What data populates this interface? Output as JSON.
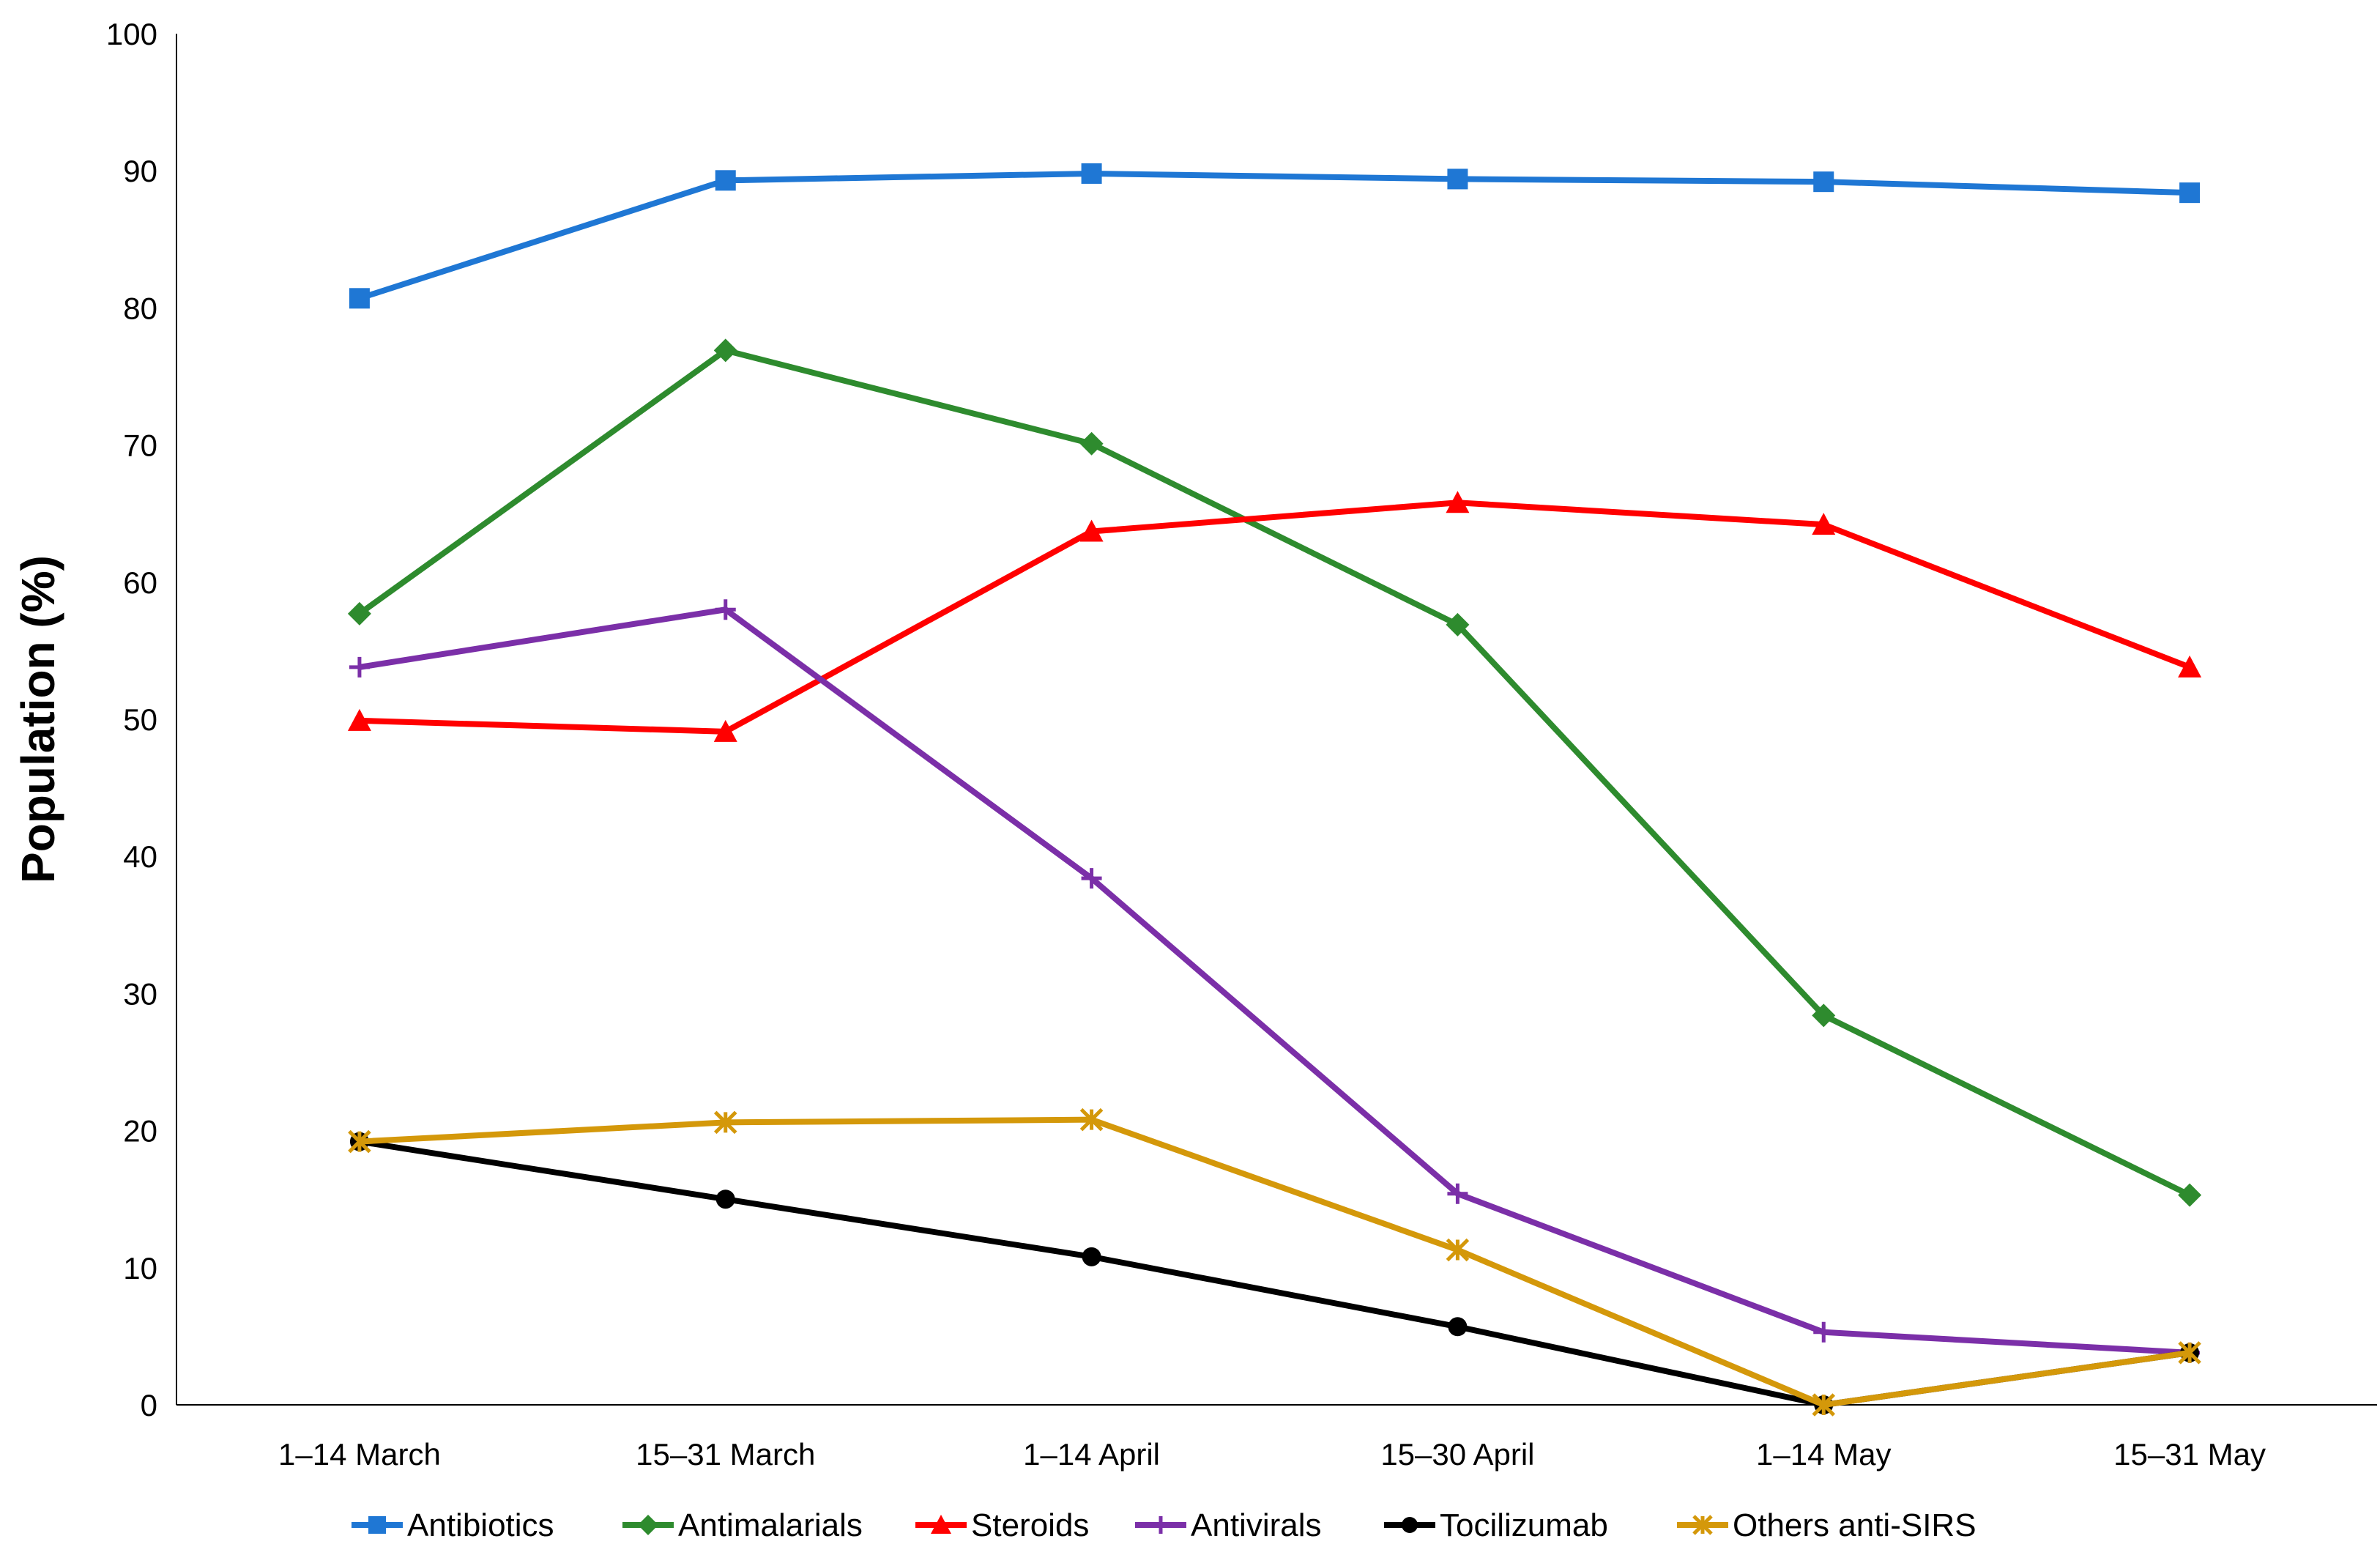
{
  "chart_data": {
    "type": "line",
    "title": "",
    "xlabel": "",
    "ylabel": "Population (%)",
    "ylim": [
      0,
      100
    ],
    "yticks": [
      0,
      10,
      20,
      30,
      40,
      50,
      60,
      70,
      80,
      90,
      100
    ],
    "grid": false,
    "legend_position": "bottom",
    "categories": [
      "1–14 March",
      "15–31 March",
      "1–14 April",
      "15–30 April",
      "1–14 May",
      "15–31 May"
    ],
    "series": [
      {
        "name": "Antibiotics",
        "color": "#1f77d4",
        "marker": "square",
        "values": [
          80.7,
          89.3,
          89.8,
          89.4,
          89.2,
          88.4
        ]
      },
      {
        "name": "Antimalarials",
        "color": "#2e8b2e",
        "marker": "diamond",
        "values": [
          57.7,
          76.9,
          70.1,
          56.9,
          28.4,
          15.3
        ]
      },
      {
        "name": "Steroids",
        "color": "#ff0000",
        "marker": "triangle",
        "values": [
          49.9,
          49.1,
          63.7,
          65.8,
          64.2,
          53.8
        ]
      },
      {
        "name": "Antivirals",
        "color": "#7b2fa8",
        "marker": "plus",
        "values": [
          53.8,
          58.0,
          38.4,
          15.4,
          5.3,
          3.8
        ]
      },
      {
        "name": "Tocilizumab",
        "color": "#000000",
        "marker": "circle",
        "values": [
          19.2,
          15.0,
          10.8,
          5.7,
          0,
          3.8
        ]
      },
      {
        "name": "Others anti-SIRS",
        "color": "#d4980a",
        "marker": "star",
        "values": [
          19.2,
          20.6,
          20.8,
          11.3,
          0,
          3.8
        ]
      }
    ]
  }
}
